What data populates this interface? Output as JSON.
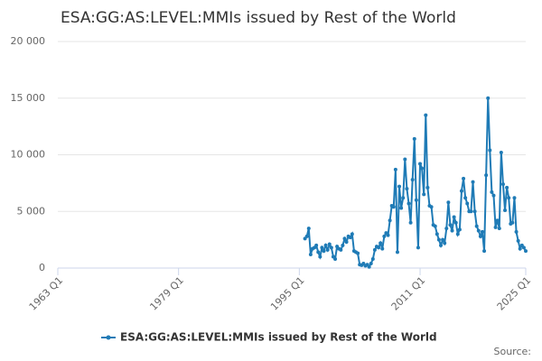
{
  "chart_data": {
    "type": "line",
    "title": "ESA:GG:AS:LEVEL:MMIs issued by Rest of the World",
    "source": "Source:",
    "x": [
      1995.75,
      1996,
      1996.25,
      1996.5,
      1996.75,
      1997,
      1997.25,
      1997.5,
      1997.75,
      1998,
      1998.25,
      1998.5,
      1998.75,
      1999,
      1999.25,
      1999.5,
      1999.75,
      2000,
      2000.25,
      2000.5,
      2000.75,
      2001,
      2001.25,
      2001.5,
      2001.75,
      2002,
      2002.25,
      2002.5,
      2002.75,
      2003,
      2003.25,
      2003.5,
      2003.75,
      2004,
      2004.25,
      2004.5,
      2004.75,
      2005,
      2005.25,
      2005.5,
      2005.75,
      2006,
      2006.25,
      2006.5,
      2006.75,
      2007,
      2007.25,
      2007.5,
      2007.75,
      2008,
      2008.25,
      2008.5,
      2008.75,
      2009,
      2009.25,
      2009.5,
      2009.75,
      2010,
      2010.25,
      2010.5,
      2010.75,
      2011,
      2011.25,
      2011.5,
      2011.75,
      2012,
      2012.25,
      2012.5,
      2012.75,
      2013,
      2013.25,
      2013.5,
      2013.75,
      2014,
      2014.25,
      2014.5,
      2014.75,
      2015,
      2015.25,
      2015.5,
      2015.75,
      2016,
      2016.25,
      2016.5,
      2016.75,
      2017,
      2017.25,
      2017.5,
      2017.75,
      2018,
      2018.25,
      2018.5,
      2018.75,
      2019,
      2019.25,
      2019.5,
      2019.75,
      2020,
      2020.25,
      2020.5,
      2020.75,
      2021,
      2021.25,
      2021.5,
      2021.75,
      2022,
      2022.25,
      2022.5,
      2022.75,
      2023,
      2023.25,
      2023.5,
      2023.75,
      2024,
      2024.25,
      2024.5,
      2024.75,
      2025
    ],
    "series": [
      {
        "name": "ESA:GG:AS:LEVEL:MMIs issued by Rest of the World",
        "color": "#1f7bb6",
        "values": [
          2600,
          2800,
          3500,
          1200,
          1700,
          1800,
          2000,
          1400,
          1000,
          1800,
          1500,
          2000,
          1600,
          2100,
          1800,
          1000,
          800,
          1900,
          1700,
          1600,
          2000,
          2600,
          2300,
          2800,
          2700,
          3000,
          1500,
          1400,
          1300,
          300,
          250,
          400,
          200,
          300,
          100,
          400,
          800,
          1600,
          1900,
          1800,
          2200,
          1700,
          2800,
          3100,
          2900,
          4200,
          5500,
          5400,
          8700,
          1400,
          7200,
          5300,
          6200,
          9600,
          7000,
          5700,
          4000,
          7800,
          11400,
          6000,
          1800,
          9200,
          8800,
          6500,
          13500,
          7100,
          5500,
          5400,
          3800,
          3700,
          3000,
          2500,
          2000,
          2500,
          2200,
          3500,
          5800,
          3800,
          3300,
          4500,
          4000,
          3000,
          3400,
          6800,
          7900,
          6200,
          5700,
          5000,
          5000,
          7600,
          5000,
          3700,
          3300,
          2800,
          3200,
          1500,
          8200,
          15000,
          10400,
          6700,
          6400,
          3600,
          4200,
          3500,
          10200,
          7400,
          5100,
          7100,
          6200,
          3900,
          4000,
          6200,
          3200,
          2400,
          1700,
          2000,
          1800,
          1500
        ]
      }
    ],
    "xlim": [
      1963,
      2025
    ],
    "xticks": [
      {
        "value": 1963,
        "label": "1963 Q1"
      },
      {
        "value": 1979,
        "label": "1979 Q1"
      },
      {
        "value": 1995,
        "label": "1995 Q1"
      },
      {
        "value": 2011,
        "label": "2011 Q1"
      },
      {
        "value": 2025,
        "label": "2025 Q1"
      }
    ],
    "ylim": [
      0,
      20000
    ],
    "yticks": [
      0,
      {
        "value": 5000,
        "label": "5 000"
      },
      {
        "value": 10000,
        "label": "10 000"
      },
      {
        "value": 15000,
        "label": "15 000"
      },
      {
        "value": 20000,
        "label": "20 000"
      }
    ],
    "grid": true
  }
}
